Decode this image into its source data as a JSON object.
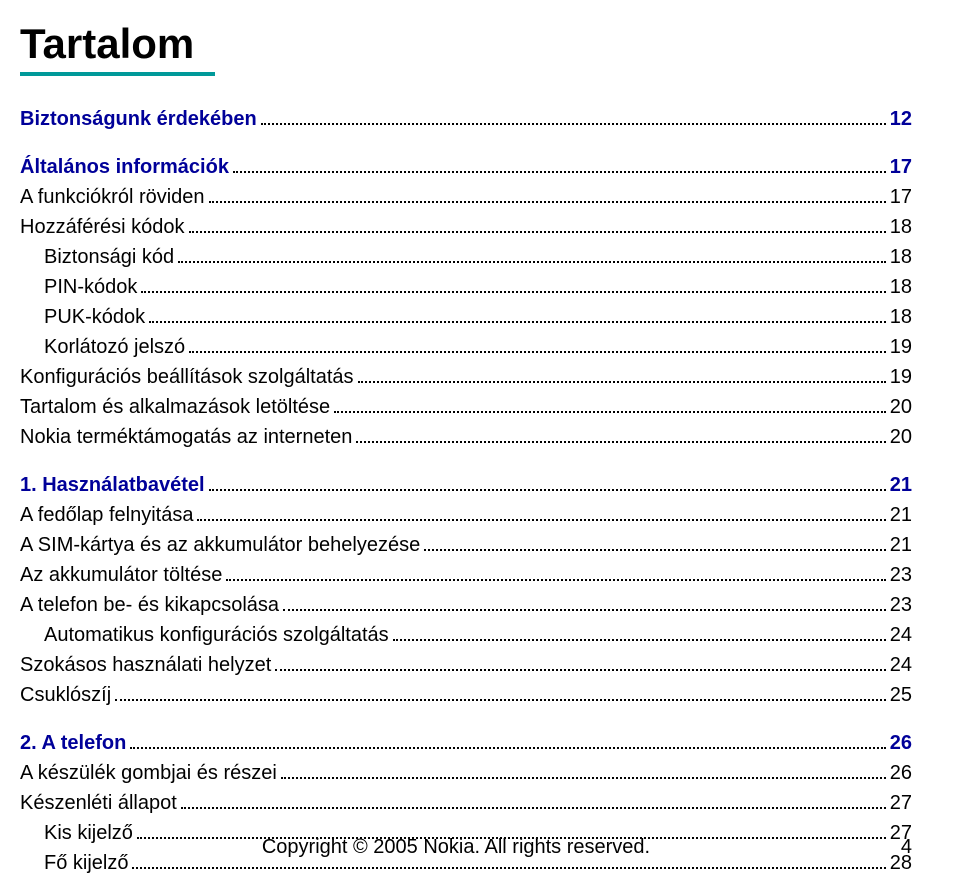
{
  "title": "Tartalom",
  "rule_color": "#009999",
  "link_color": "#000099",
  "text_color": "#000000",
  "font_size_title": 42,
  "font_size_body": 20,
  "toc": [
    {
      "label": "Biztonságunk érdekében",
      "page": "12",
      "bold": true,
      "indent": 0,
      "gap_after": true
    },
    {
      "label": "Általános információk",
      "page": "17",
      "bold": true,
      "indent": 0
    },
    {
      "label": "A funkciókról röviden",
      "page": "17",
      "bold": false,
      "indent": 0
    },
    {
      "label": "Hozzáférési kódok",
      "page": "18",
      "bold": false,
      "indent": 0
    },
    {
      "label": "Biztonsági kód",
      "page": "18",
      "bold": false,
      "indent": 1
    },
    {
      "label": "PIN-kódok",
      "page": "18",
      "bold": false,
      "indent": 1
    },
    {
      "label": "PUK-kódok",
      "page": "18",
      "bold": false,
      "indent": 1
    },
    {
      "label": "Korlátozó jelszó",
      "page": "19",
      "bold": false,
      "indent": 1
    },
    {
      "label": "Konfigurációs beállítások szolgáltatás",
      "page": "19",
      "bold": false,
      "indent": 0
    },
    {
      "label": "Tartalom és alkalmazások letöltése",
      "page": "20",
      "bold": false,
      "indent": 0
    },
    {
      "label": "Nokia terméktámogatás az interneten",
      "page": "20",
      "bold": false,
      "indent": 0,
      "gap_after": true
    },
    {
      "label": "1. Használatbavétel",
      "page": "21",
      "bold": true,
      "indent": 0
    },
    {
      "label": "A fedőlap felnyitása",
      "page": "21",
      "bold": false,
      "indent": 0
    },
    {
      "label": "A SIM-kártya és az akkumulátor behelyezése",
      "page": "21",
      "bold": false,
      "indent": 0
    },
    {
      "label": "Az akkumulátor töltése",
      "page": "23",
      "bold": false,
      "indent": 0
    },
    {
      "label": "A telefon be- és kikapcsolása",
      "page": "23",
      "bold": false,
      "indent": 0
    },
    {
      "label": "Automatikus konfigurációs szolgáltatás",
      "page": "24",
      "bold": false,
      "indent": 1
    },
    {
      "label": "Szokásos használati helyzet",
      "page": "24",
      "bold": false,
      "indent": 0
    },
    {
      "label": "Csuklószíj",
      "page": "25",
      "bold": false,
      "indent": 0,
      "gap_after": true
    },
    {
      "label": "2. A telefon",
      "page": "26",
      "bold": true,
      "indent": 0
    },
    {
      "label": "A készülék gombjai és részei",
      "page": "26",
      "bold": false,
      "indent": 0
    },
    {
      "label": "Készenléti állapot",
      "page": "27",
      "bold": false,
      "indent": 0
    },
    {
      "label": "Kis kijelző",
      "page": "27",
      "bold": false,
      "indent": 1
    },
    {
      "label": "Fő kijelző",
      "page": "28",
      "bold": false,
      "indent": 1
    }
  ],
  "footer": {
    "copyright": "Copyright © 2005 Nokia. All rights reserved.",
    "page_number": "4"
  }
}
